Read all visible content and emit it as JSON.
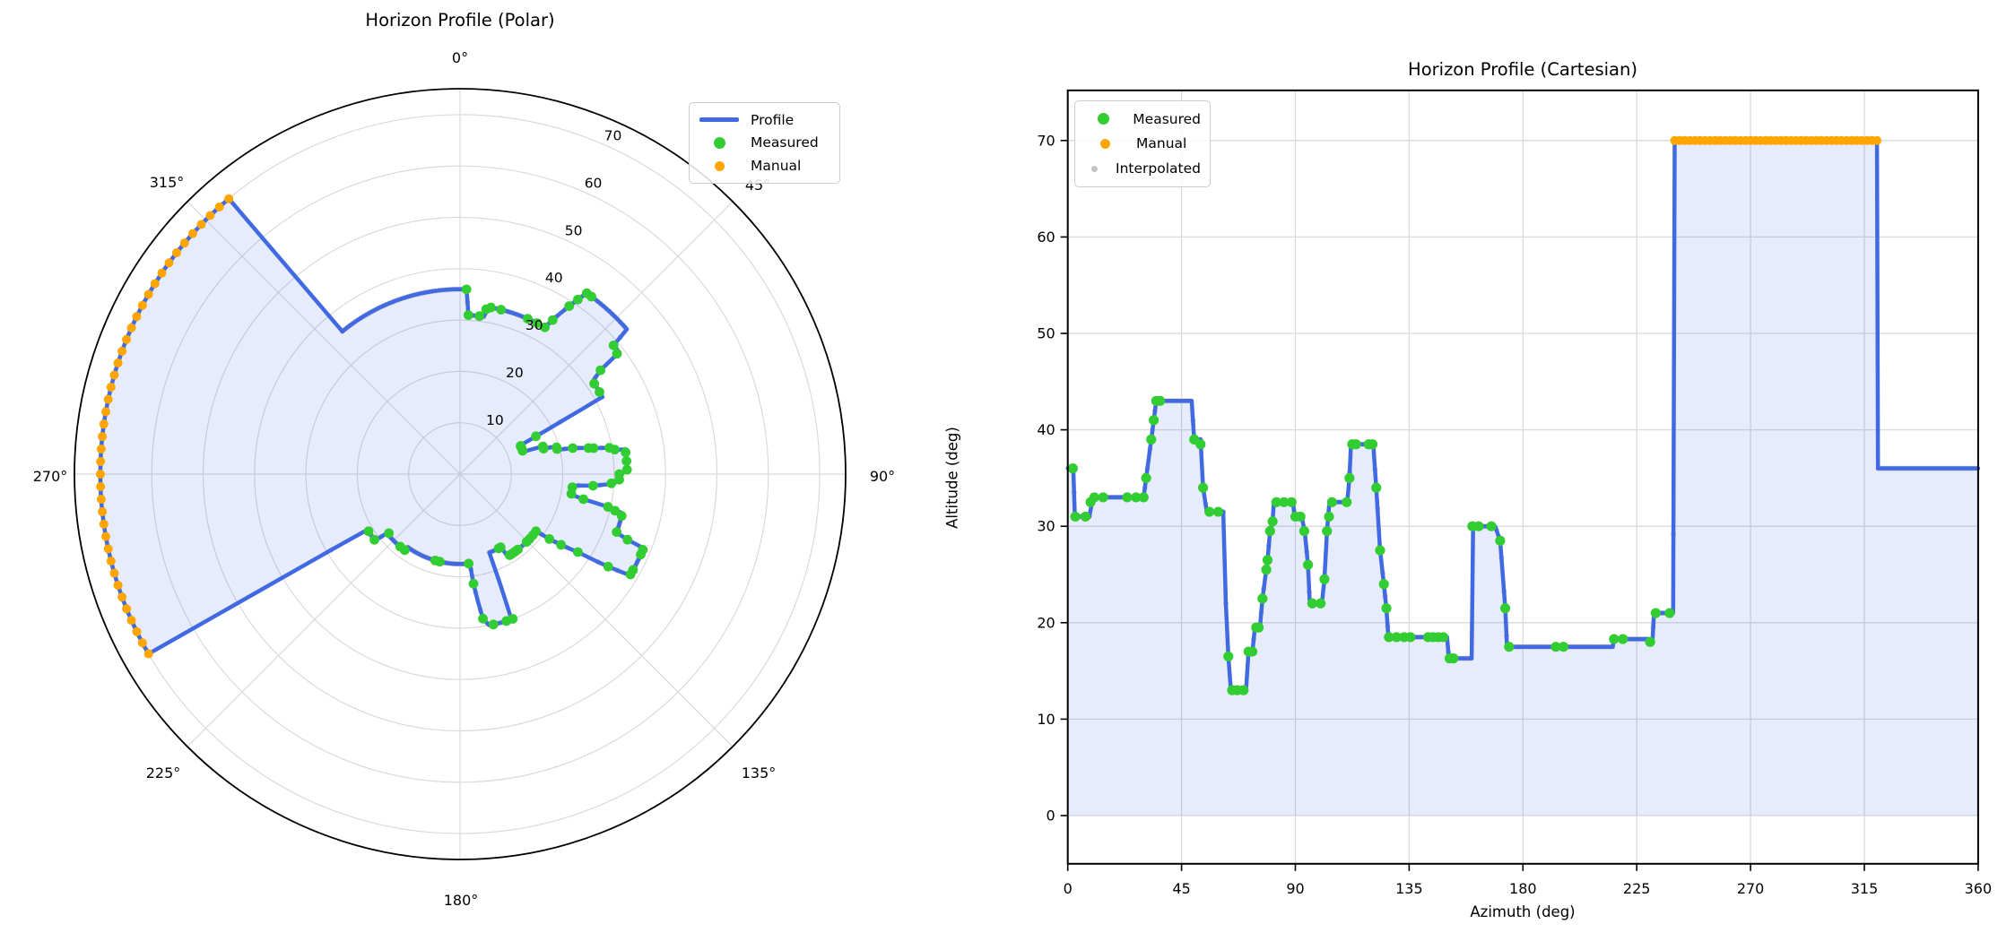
{
  "chart_data": [
    {
      "type": "line",
      "projection": "polar",
      "title": "Horizon Profile (Polar)",
      "theta_zero_location": "top",
      "theta_direction": "clockwise",
      "theta_tick_labels": [
        "0°",
        "45°",
        "90°",
        "135°",
        "180°",
        "225°",
        "270°",
        "315°"
      ],
      "r_tick_labels": [
        "10",
        "20",
        "30",
        "40",
        "50",
        "60",
        "70"
      ],
      "r_ticks": [
        10,
        20,
        30,
        40,
        50,
        60,
        70
      ],
      "r_max": 75,
      "grid": true,
      "legend": [
        "Profile",
        "Measured",
        "Manual"
      ],
      "legend_position": "upper right"
    },
    {
      "type": "line",
      "title": "Horizon Profile (Cartesian)",
      "xlabel": "Azimuth (deg)",
      "ylabel": "Altitude (deg)",
      "x_ticks": [
        0,
        45,
        90,
        135,
        180,
        225,
        270,
        315,
        360
      ],
      "y_ticks": [
        0,
        10,
        20,
        30,
        40,
        50,
        60,
        70
      ],
      "xlim": [
        0,
        360
      ],
      "ylim": [
        -5,
        75.2
      ],
      "grid": true,
      "legend": [
        "Measured",
        "Manual",
        "Interpolated"
      ],
      "legend_position": "upper left"
    }
  ],
  "series": {
    "description": "Horizon altitude profile vs azimuth; profile is piecewise-linear through vertices, shared by both charts",
    "profile_vertices": [
      [
        0,
        36
      ],
      [
        2.2,
        36
      ],
      [
        2.8,
        31
      ],
      [
        8.5,
        31
      ],
      [
        10,
        33
      ],
      [
        30,
        33
      ],
      [
        31,
        35
      ],
      [
        33,
        39
      ],
      [
        34,
        41
      ],
      [
        35,
        43
      ],
      [
        49,
        43
      ],
      [
        50,
        39
      ],
      [
        52.5,
        39
      ],
      [
        53.5,
        34
      ],
      [
        55,
        31.5
      ],
      [
        61.5,
        31.5
      ],
      [
        62.5,
        22
      ],
      [
        63.5,
        16.5
      ],
      [
        64.5,
        13
      ],
      [
        70.5,
        13
      ],
      [
        71.5,
        17
      ],
      [
        73,
        17
      ],
      [
        74,
        19.5
      ],
      [
        76,
        19.5
      ],
      [
        77,
        22.5
      ],
      [
        78.5,
        25.5
      ],
      [
        79,
        26.5
      ],
      [
        80,
        29.5
      ],
      [
        81,
        30.5
      ],
      [
        81.5,
        32.5
      ],
      [
        89,
        32.5
      ],
      [
        89.8,
        31
      ],
      [
        92.5,
        31
      ],
      [
        93.7,
        29.5
      ],
      [
        95,
        26
      ],
      [
        95.7,
        22
      ],
      [
        100.5,
        22
      ],
      [
        101.5,
        24.5
      ],
      [
        102.5,
        29.5
      ],
      [
        103.3,
        32
      ],
      [
        104,
        32.5
      ],
      [
        110.5,
        32.5
      ],
      [
        111.4,
        35
      ],
      [
        112,
        38.5
      ],
      [
        120.8,
        38.5
      ],
      [
        122,
        34
      ],
      [
        123.5,
        27.5
      ],
      [
        125,
        24
      ],
      [
        126,
        21.5
      ],
      [
        126.8,
        18.5
      ],
      [
        150,
        18.5
      ],
      [
        150.7,
        16.3
      ],
      [
        159.7,
        16.3
      ],
      [
        160.3,
        30
      ],
      [
        169,
        30
      ],
      [
        171,
        28.5
      ],
      [
        173,
        21.5
      ],
      [
        173.7,
        17.5
      ],
      [
        215.5,
        17.5
      ],
      [
        216,
        18.3
      ],
      [
        229.5,
        18.3
      ],
      [
        230.3,
        18
      ],
      [
        231.2,
        18
      ],
      [
        231.8,
        21
      ],
      [
        239.4,
        21
      ],
      [
        240,
        70
      ],
      [
        320,
        70
      ],
      [
        320.4,
        36
      ],
      [
        360,
        36
      ]
    ],
    "measured": [
      [
        2,
        36
      ],
      [
        3,
        31
      ],
      [
        7,
        31
      ],
      [
        9,
        32.5
      ],
      [
        10.5,
        33
      ],
      [
        14,
        33
      ],
      [
        23.5,
        33
      ],
      [
        27,
        33
      ],
      [
        30,
        33
      ],
      [
        31,
        35
      ],
      [
        33,
        39
      ],
      [
        34,
        41
      ],
      [
        35,
        43
      ],
      [
        36.5,
        43
      ],
      [
        50,
        39
      ],
      [
        52.5,
        38.5
      ],
      [
        53.5,
        34
      ],
      [
        56,
        31.5
      ],
      [
        59.5,
        31.5
      ],
      [
        63.5,
        16.5
      ],
      [
        65,
        13
      ],
      [
        67,
        13
      ],
      [
        69.5,
        13
      ],
      [
        71.5,
        17
      ],
      [
        73,
        17
      ],
      [
        74.5,
        19.5
      ],
      [
        75.5,
        19.5
      ],
      [
        77,
        22.5
      ],
      [
        78.5,
        25.5
      ],
      [
        79,
        26.5
      ],
      [
        80,
        29.5
      ],
      [
        81,
        30.5
      ],
      [
        82.5,
        32.5
      ],
      [
        85.5,
        32.5
      ],
      [
        88.5,
        32.5
      ],
      [
        90,
        31
      ],
      [
        92,
        31
      ],
      [
        93.5,
        29.5
      ],
      [
        95,
        26
      ],
      [
        96.7,
        22
      ],
      [
        100,
        22
      ],
      [
        101.5,
        24.5
      ],
      [
        102.5,
        29.5
      ],
      [
        103.3,
        31
      ],
      [
        104.5,
        32.5
      ],
      [
        110.3,
        32.5
      ],
      [
        111.4,
        35
      ],
      [
        112.5,
        38.5
      ],
      [
        114,
        38.5
      ],
      [
        119,
        38.5
      ],
      [
        120.5,
        38.5
      ],
      [
        122,
        34
      ],
      [
        123.5,
        27.5
      ],
      [
        125,
        24
      ],
      [
        126,
        21.5
      ],
      [
        127,
        18.5
      ],
      [
        130,
        18.5
      ],
      [
        133,
        18.5
      ],
      [
        135.5,
        18.5
      ],
      [
        142.5,
        18.5
      ],
      [
        144.5,
        18.5
      ],
      [
        146.5,
        18.5
      ],
      [
        148.5,
        18.5
      ],
      [
        151,
        16.3
      ],
      [
        152.5,
        16.3
      ],
      [
        160,
        30
      ],
      [
        162.5,
        30
      ],
      [
        167.5,
        30
      ],
      [
        171,
        28.5
      ],
      [
        173,
        21.5
      ],
      [
        174.5,
        17.5
      ],
      [
        193,
        17.5
      ],
      [
        196,
        17.5
      ],
      [
        216,
        18.3
      ],
      [
        219.5,
        18.3
      ],
      [
        230.3,
        18
      ],
      [
        232.5,
        21
      ],
      [
        238,
        21
      ]
    ],
    "manual": [
      [
        240,
        70
      ],
      [
        242,
        70
      ],
      [
        244,
        70
      ],
      [
        246,
        70
      ],
      [
        248,
        70
      ],
      [
        250,
        70
      ],
      [
        252,
        70
      ],
      [
        254,
        70
      ],
      [
        256,
        70
      ],
      [
        258,
        70
      ],
      [
        260,
        70
      ],
      [
        262,
        70
      ],
      [
        264,
        70
      ],
      [
        266,
        70
      ],
      [
        268,
        70
      ],
      [
        270,
        70
      ],
      [
        272,
        70
      ],
      [
        274,
        70
      ],
      [
        276,
        70
      ],
      [
        278,
        70
      ],
      [
        280,
        70
      ],
      [
        282,
        70
      ],
      [
        284,
        70
      ],
      [
        286,
        70
      ],
      [
        288,
        70
      ],
      [
        290,
        70
      ],
      [
        292,
        70
      ],
      [
        294,
        70
      ],
      [
        296,
        70
      ],
      [
        298,
        70
      ],
      [
        300,
        70
      ],
      [
        302,
        70
      ],
      [
        304,
        70
      ],
      [
        306,
        70
      ],
      [
        308,
        70
      ],
      [
        310,
        70
      ],
      [
        312,
        70
      ],
      [
        314,
        70
      ],
      [
        316,
        70
      ],
      [
        318,
        70
      ],
      [
        320,
        70
      ]
    ],
    "interpolated": {
      "note": "small gray points every 1 deg along the profile, mostly hidden under the profile line",
      "step_deg": 1
    }
  },
  "colors": {
    "profile": "#4169E1",
    "fill": "rgba(65,105,225,0.13)",
    "measured": "#32CD32",
    "manual": "#FFA500",
    "interpolated": "#C4C4C4",
    "grid": "#DADADA",
    "axis": "#000000"
  }
}
